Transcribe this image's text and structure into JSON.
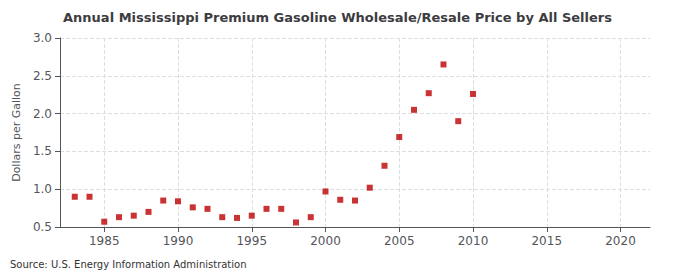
{
  "chart_data": {
    "type": "scatter",
    "title": "Annual Mississippi Premium Gasoline Wholesale/Resale Price by All Sellers",
    "ylabel": "Dollars per Gallon",
    "annotation": "Source: U.S. Energy Information Administration",
    "x": [
      1983,
      1984,
      1985,
      1986,
      1987,
      1988,
      1989,
      1990,
      1991,
      1992,
      1993,
      1994,
      1995,
      1996,
      1997,
      1998,
      1999,
      2000,
      2001,
      2002,
      2003,
      2004,
      2005,
      2006,
      2007,
      2008,
      2009,
      2010
    ],
    "values": [
      0.9,
      0.9,
      0.57,
      0.63,
      0.65,
      0.7,
      0.85,
      0.84,
      0.76,
      0.74,
      0.63,
      0.62,
      0.65,
      0.74,
      0.74,
      0.56,
      0.63,
      0.97,
      0.86,
      0.85,
      1.02,
      1.31,
      1.69,
      2.05,
      2.27,
      2.65,
      1.9,
      2.26
    ],
    "color": "#bb0000",
    "marker": "square",
    "xlim": [
      1982,
      2022
    ],
    "xticks": [
      1985,
      1990,
      1995,
      2000,
      2005,
      2010,
      2015,
      2020
    ],
    "ylim": [
      0.5,
      3.0
    ],
    "yticks": [
      0.5,
      {
        "value": 1,
        "label": "1.0"
      },
      1.5,
      {
        "value": 2,
        "label": "2.0"
      },
      2.5,
      {
        "value": 3,
        "label": "3.0"
      }
    ],
    "grid": true
  }
}
